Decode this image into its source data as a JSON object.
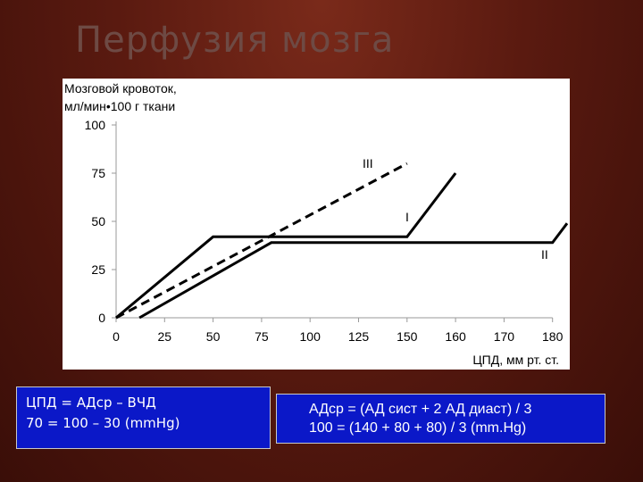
{
  "slide": {
    "title": "Перфузия мозга"
  },
  "formula_left": {
    "line1": "ЦПД = АДср – ВЧД",
    "line2": "70 = 100 – 30 (mmHg)"
  },
  "formula_right": {
    "line1": "АДср = (АД сист + 2 АД диаст) / 3",
    "line2": "100 = (140 + 80 + 80) / 3 (mm.Hg)"
  },
  "colors": {
    "background": "#5a1a10",
    "box": "#0b18c8",
    "line": "#000000"
  },
  "chart_data": {
    "type": "line",
    "ylabel_line1": "Мозговой кровоток,",
    "ylabel_line2": "мл/мин•100 г ткани",
    "xlabel": "ЦПД, мм рт. ст.",
    "x_ticks": [
      "0",
      "25",
      "50",
      "75",
      "100",
      "125",
      "150",
      "160",
      "170",
      "180"
    ],
    "y_ticks": [
      "0",
      "25",
      "50",
      "75",
      "100"
    ],
    "ylim": [
      0,
      100
    ],
    "series": [
      {
        "name": "I",
        "style": "solid",
        "x": [
          0,
          50,
          150,
          160
        ],
        "y": [
          0,
          42,
          42,
          75
        ]
      },
      {
        "name": "II",
        "style": "solid",
        "x": [
          12,
          80,
          180,
          183
        ],
        "y": [
          0,
          39,
          39,
          49
        ]
      },
      {
        "name": "III",
        "style": "dashed",
        "x": [
          0,
          150
        ],
        "y": [
          0,
          80
        ]
      }
    ]
  }
}
